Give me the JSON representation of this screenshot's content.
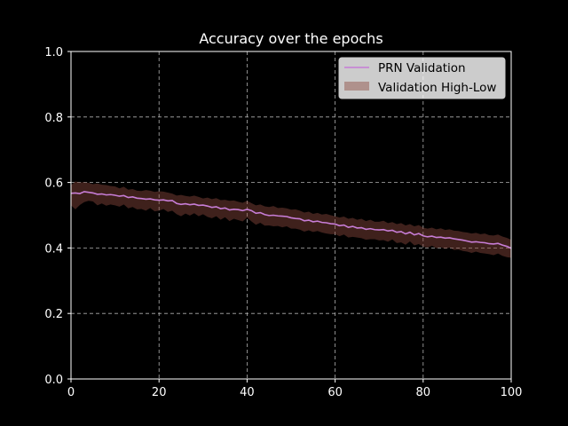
{
  "chart_data": {
    "type": "line",
    "title": "Accuracy over the epochs",
    "xlabel": "",
    "ylabel": "",
    "xlim": [
      0,
      100
    ],
    "ylim": [
      0,
      1
    ],
    "xticks": [
      0,
      20,
      40,
      60,
      80,
      100
    ],
    "yticks": [
      0.0,
      0.2,
      0.4,
      0.6,
      0.8,
      1.0
    ],
    "xtick_labels": [
      "0",
      "20",
      "40",
      "60",
      "80",
      "100"
    ],
    "ytick_labels": [
      "0.0",
      "0.2",
      "0.4",
      "0.6",
      "0.8",
      "1.0"
    ],
    "grid": true,
    "legend_position": "top-right",
    "x": [
      0,
      1,
      2,
      3,
      4,
      5,
      6,
      7,
      8,
      9,
      10,
      11,
      12,
      13,
      14,
      15,
      16,
      17,
      18,
      19,
      20,
      21,
      22,
      23,
      24,
      25,
      26,
      27,
      28,
      29,
      30,
      31,
      32,
      33,
      34,
      35,
      36,
      37,
      38,
      39,
      40,
      41,
      42,
      43,
      44,
      45,
      46,
      47,
      48,
      49,
      50,
      51,
      52,
      53,
      54,
      55,
      56,
      57,
      58,
      59,
      60,
      61,
      62,
      63,
      64,
      65,
      66,
      67,
      68,
      69,
      70,
      71,
      72,
      73,
      74,
      75,
      76,
      77,
      78,
      79,
      80,
      81,
      82,
      83,
      84,
      85,
      86,
      87,
      88,
      89,
      90,
      91,
      92,
      93,
      94,
      95,
      96,
      97,
      98,
      99,
      100
    ],
    "series": [
      {
        "name": "PRN Validation",
        "color": "#c77dd6",
        "values": [
          0.567,
          0.568,
          0.566,
          0.572,
          0.57,
          0.568,
          0.564,
          0.565,
          0.562,
          0.563,
          0.561,
          0.558,
          0.56,
          0.554,
          0.556,
          0.552,
          0.551,
          0.549,
          0.55,
          0.547,
          0.546,
          0.547,
          0.544,
          0.545,
          0.536,
          0.533,
          0.535,
          0.532,
          0.534,
          0.53,
          0.531,
          0.528,
          0.524,
          0.526,
          0.52,
          0.522,
          0.516,
          0.518,
          0.517,
          0.514,
          0.518,
          0.514,
          0.506,
          0.508,
          0.502,
          0.499,
          0.5,
          0.498,
          0.497,
          0.496,
          0.492,
          0.49,
          0.489,
          0.483,
          0.485,
          0.48,
          0.482,
          0.478,
          0.477,
          0.474,
          0.473,
          0.468,
          0.47,
          0.463,
          0.466,
          0.461,
          0.462,
          0.457,
          0.459,
          0.456,
          0.455,
          0.456,
          0.452,
          0.454,
          0.448,
          0.45,
          0.443,
          0.448,
          0.44,
          0.444,
          0.437,
          0.434,
          0.436,
          0.432,
          0.433,
          0.43,
          0.431,
          0.428,
          0.426,
          0.424,
          0.421,
          0.418,
          0.419,
          0.417,
          0.416,
          0.413,
          0.412,
          0.414,
          0.409,
          0.405,
          0.399
        ]
      }
    ],
    "band": {
      "name": "Validation High-Low",
      "color": "#8b4a3d",
      "high": [
        0.592,
        0.603,
        0.6,
        0.601,
        0.599,
        0.595,
        0.597,
        0.593,
        0.592,
        0.589,
        0.588,
        0.582,
        0.587,
        0.578,
        0.58,
        0.575,
        0.574,
        0.577,
        0.575,
        0.571,
        0.573,
        0.572,
        0.569,
        0.566,
        0.56,
        0.562,
        0.559,
        0.557,
        0.56,
        0.556,
        0.551,
        0.554,
        0.549,
        0.552,
        0.546,
        0.547,
        0.544,
        0.545,
        0.541,
        0.538,
        0.544,
        0.537,
        0.53,
        0.533,
        0.527,
        0.525,
        0.528,
        0.522,
        0.523,
        0.521,
        0.517,
        0.518,
        0.514,
        0.508,
        0.511,
        0.504,
        0.507,
        0.502,
        0.504,
        0.5,
        0.497,
        0.493,
        0.496,
        0.489,
        0.492,
        0.486,
        0.489,
        0.482,
        0.486,
        0.48,
        0.48,
        0.483,
        0.476,
        0.479,
        0.473,
        0.476,
        0.469,
        0.473,
        0.466,
        0.47,
        0.462,
        0.459,
        0.462,
        0.457,
        0.46,
        0.455,
        0.457,
        0.453,
        0.452,
        0.449,
        0.447,
        0.444,
        0.446,
        0.442,
        0.444,
        0.439,
        0.438,
        0.441,
        0.435,
        0.431,
        0.425
      ],
      "low": [
        0.53,
        0.518,
        0.531,
        0.54,
        0.544,
        0.542,
        0.53,
        0.536,
        0.529,
        0.533,
        0.53,
        0.526,
        0.533,
        0.521,
        0.525,
        0.518,
        0.519,
        0.514,
        0.522,
        0.512,
        0.514,
        0.519,
        0.51,
        0.514,
        0.503,
        0.497,
        0.505,
        0.499,
        0.506,
        0.497,
        0.503,
        0.495,
        0.491,
        0.497,
        0.486,
        0.494,
        0.482,
        0.489,
        0.485,
        0.481,
        0.493,
        0.481,
        0.471,
        0.477,
        0.468,
        0.469,
        0.466,
        0.467,
        0.463,
        0.466,
        0.459,
        0.459,
        0.456,
        0.45,
        0.454,
        0.449,
        0.452,
        0.447,
        0.444,
        0.442,
        0.442,
        0.436,
        0.441,
        0.432,
        0.434,
        0.432,
        0.43,
        0.425,
        0.427,
        0.427,
        0.423,
        0.424,
        0.419,
        0.426,
        0.415,
        0.417,
        0.41,
        0.42,
        0.408,
        0.412,
        0.404,
        0.401,
        0.407,
        0.399,
        0.402,
        0.397,
        0.401,
        0.394,
        0.395,
        0.391,
        0.389,
        0.385,
        0.389,
        0.385,
        0.383,
        0.381,
        0.378,
        0.383,
        0.376,
        0.372,
        0.37
      ]
    }
  }
}
